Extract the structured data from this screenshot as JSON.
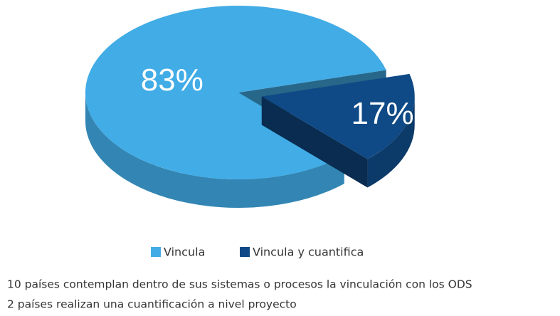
{
  "chart_data": {
    "type": "pie",
    "categories": [
      "Vincula",
      "Vincula y cuantifica"
    ],
    "values": [
      83,
      17
    ],
    "value_labels": [
      "83%",
      "17%"
    ],
    "colors": [
      "#41ace6",
      "#0f4a86"
    ],
    "legend": "bottom"
  },
  "notes": [
    "10 países contemplan dentro de sus sistemas o procesos la vinculación con los ODS",
    "2 países realizan una cuantificación a nivel proyecto"
  ]
}
